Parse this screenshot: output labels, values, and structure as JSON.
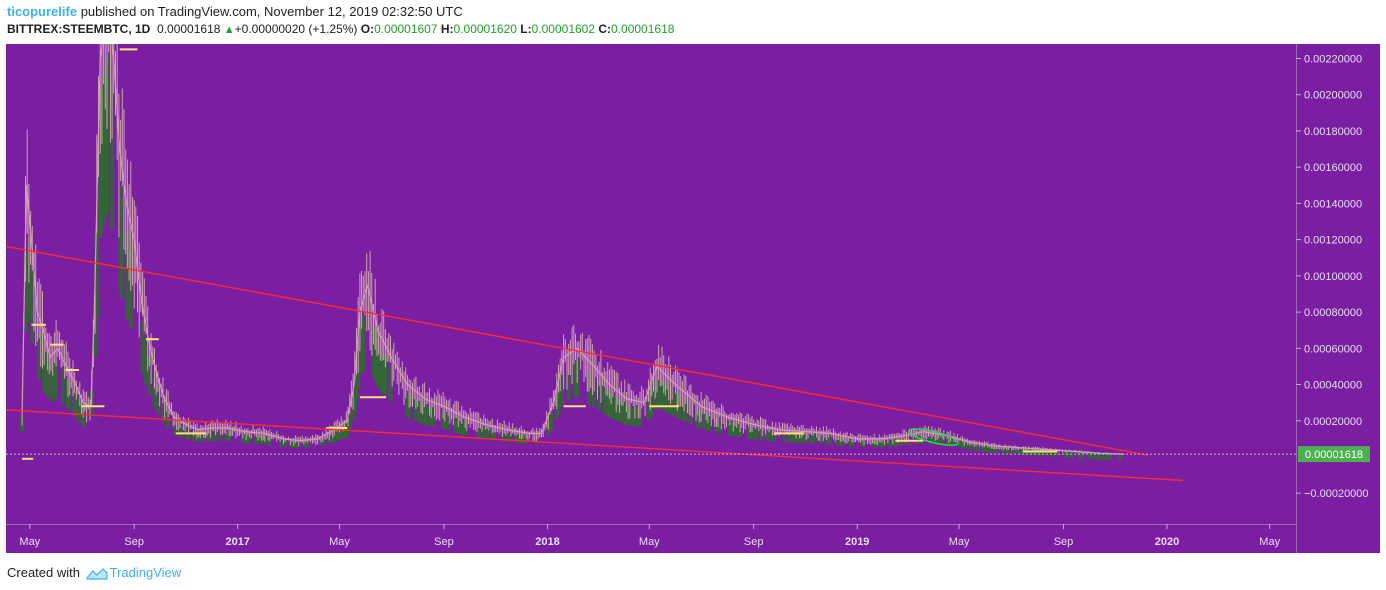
{
  "header": {
    "author": "ticopurelife",
    "published_text": "published on TradingView.com, November 12, 2019 02:32:50 UTC"
  },
  "ohlc": {
    "symbol": "BITTREX:STEEMBTC, 1D",
    "last": "0.00001618",
    "change": "+0.00000020 (+1.25%)",
    "o_label": "O:",
    "o": "0.00001607",
    "h_label": "H:",
    "h": "0.00001620",
    "l_label": "L:",
    "l": "0.00001602",
    "c_label": "C:",
    "c": "0.00001618"
  },
  "footer": {
    "created_with": "Created with",
    "brand": "TradingView"
  },
  "colors": {
    "background": "#7b1fa2",
    "trendline": "#ff2a2a",
    "candle": "#cfa3b0",
    "fill": "#2e6b2e",
    "level": "#ffe27a",
    "highlight": "#22dd44",
    "price_tag": "#4caf50"
  },
  "chart_data": {
    "type": "line",
    "title": "",
    "xlabel": "",
    "ylabel": "",
    "x_ticks": [
      "May",
      "Sep",
      "2017",
      "May",
      "Sep",
      "2018",
      "May",
      "Sep",
      "2019",
      "May",
      "Sep",
      "2020",
      "May"
    ],
    "x_tick_dates": [
      "2016-05-01",
      "2016-09-01",
      "2017-01-01",
      "2017-05-01",
      "2017-09-01",
      "2018-01-01",
      "2018-05-01",
      "2018-09-01",
      "2019-01-01",
      "2019-05-01",
      "2019-09-01",
      "2020-01-01",
      "2020-05-01"
    ],
    "y_ticks": [
      "0.00220000",
      "0.00200000",
      "0.00180000",
      "0.00160000",
      "0.00140000",
      "0.00120000",
      "0.00100000",
      "0.00080000",
      "0.00060000",
      "0.00040000",
      "0.00020000",
      "−0.00020000"
    ],
    "y_tick_values": [
      0.0022,
      0.002,
      0.0018,
      0.0016,
      0.0014,
      0.0012,
      0.001,
      0.0008,
      0.0006,
      0.0004,
      0.0002,
      -0.0002
    ],
    "ylim": [
      -0.00037,
      0.00228
    ],
    "xlim": [
      "2016-04-03",
      "2020-06-01"
    ],
    "last_price": 1.618e-05,
    "last_price_label": "0.00001618",
    "series": [
      {
        "x": [
          "2016-04-22",
          "2016-04-27",
          "2016-05-03",
          "2016-05-10",
          "2016-05-17",
          "2016-05-25",
          "2016-06-03",
          "2016-06-13",
          "2016-06-24",
          "2016-07-03",
          "2016-07-12",
          "2016-07-16",
          "2016-07-23",
          "2016-08-01",
          "2016-08-08",
          "2016-08-15",
          "2016-08-23",
          "2016-09-01",
          "2016-09-06",
          "2016-09-12",
          "2016-09-20",
          "2016-09-28",
          "2016-10-07",
          "2016-10-18",
          "2016-11-01",
          "2016-11-15",
          "2016-12-01",
          "2016-12-20",
          "2017-01-10",
          "2017-02-01",
          "2017-02-25",
          "2017-03-15",
          "2017-04-05",
          "2017-04-25",
          "2017-05-10",
          "2017-05-18",
          "2017-05-25",
          "2017-06-03",
          "2017-06-15",
          "2017-07-01",
          "2017-07-20",
          "2017-08-10",
          "2017-09-01",
          "2017-09-25",
          "2017-10-20",
          "2017-11-15",
          "2017-12-10",
          "2017-12-25",
          "2018-01-08",
          "2018-01-20",
          "2018-02-05",
          "2018-02-25",
          "2018-03-15",
          "2018-04-05",
          "2018-04-25",
          "2018-05-10",
          "2018-06-01",
          "2018-07-01",
          "2018-08-01",
          "2018-09-01",
          "2018-10-01",
          "2018-11-01",
          "2018-12-01",
          "2019-01-01",
          "2019-02-01",
          "2019-03-01",
          "2019-03-20",
          "2019-04-15",
          "2019-05-15",
          "2019-06-15",
          "2019-07-15",
          "2019-08-15",
          "2019-09-15",
          "2019-10-15",
          "2019-11-12"
        ],
        "values": [
          0.00025,
          0.0015,
          0.0012,
          0.0008,
          0.0007,
          0.00055,
          0.0006,
          0.0005,
          0.0004,
          0.0003,
          0.00028,
          0.0008,
          0.0022,
          0.0025,
          0.0022,
          0.0017,
          0.0014,
          0.0012,
          0.001,
          0.0008,
          0.0006,
          0.00045,
          0.00032,
          0.00022,
          0.00018,
          0.00015,
          0.00016,
          0.00016,
          0.00014,
          0.00013,
          0.0001,
          9e-05,
          0.0001,
          0.00015,
          0.0002,
          0.0004,
          0.0008,
          0.00095,
          0.0007,
          0.00055,
          0.0004,
          0.00032,
          0.00028,
          0.00022,
          0.00018,
          0.00015,
          0.00013,
          0.00013,
          0.0003,
          0.00055,
          0.0006,
          0.0005,
          0.0004,
          0.00032,
          0.0003,
          0.0005,
          0.0004,
          0.00028,
          0.00022,
          0.00018,
          0.00015,
          0.00014,
          0.00013,
          0.0001,
          0.0001,
          0.00012,
          0.00014,
          0.00012,
          8e-05,
          6e-05,
          5e-05,
          4e-05,
          3e-05,
          2e-05,
          1.618e-05
        ]
      }
    ],
    "trendlines": [
      {
        "x1": "2016-01-15",
        "y1": 0.00123,
        "x2": "2019-12-10",
        "y2": 1e-05
      },
      {
        "x1": "2015-12-20",
        "y1": 0.00029,
        "x2": "2020-01-20",
        "y2": -0.00013
      }
    ],
    "level_marks": [
      {
        "x1": "2016-05-03",
        "x2": "2016-05-20",
        "y": 0.00073
      },
      {
        "x1": "2016-05-25",
        "x2": "2016-06-10",
        "y": 0.00062
      },
      {
        "x1": "2016-06-12",
        "x2": "2016-06-28",
        "y": 0.00048
      },
      {
        "x1": "2016-07-01",
        "x2": "2016-07-28",
        "y": 0.00028
      },
      {
        "x1": "2016-08-15",
        "x2": "2016-09-05",
        "y": 0.00225
      },
      {
        "x1": "2016-09-15",
        "x2": "2016-09-30",
        "y": 0.00065
      },
      {
        "x1": "2016-10-20",
        "x2": "2016-11-25",
        "y": 0.00013
      },
      {
        "x1": "2017-04-15",
        "x2": "2017-05-10",
        "y": 0.00016
      },
      {
        "x1": "2017-05-25",
        "x2": "2017-06-25",
        "y": 0.00033
      },
      {
        "x1": "2018-01-20",
        "x2": "2018-02-15",
        "y": 0.00028
      },
      {
        "x1": "2018-05-01",
        "x2": "2018-06-05",
        "y": 0.00028
      },
      {
        "x1": "2018-09-25",
        "x2": "2018-10-30",
        "y": 0.00013
      },
      {
        "x1": "2019-02-15",
        "x2": "2019-03-20",
        "y": 9e-05
      },
      {
        "x1": "2019-07-15",
        "x2": "2019-08-25",
        "y": 3e-05
      },
      {
        "x1": "2016-04-22",
        "x2": "2016-05-05",
        "y": -1e-05
      }
    ],
    "highlight": {
      "cx": "2019-04-01",
      "cy": 0.00011,
      "rx_days": 30,
      "ry": 3e-05
    }
  }
}
